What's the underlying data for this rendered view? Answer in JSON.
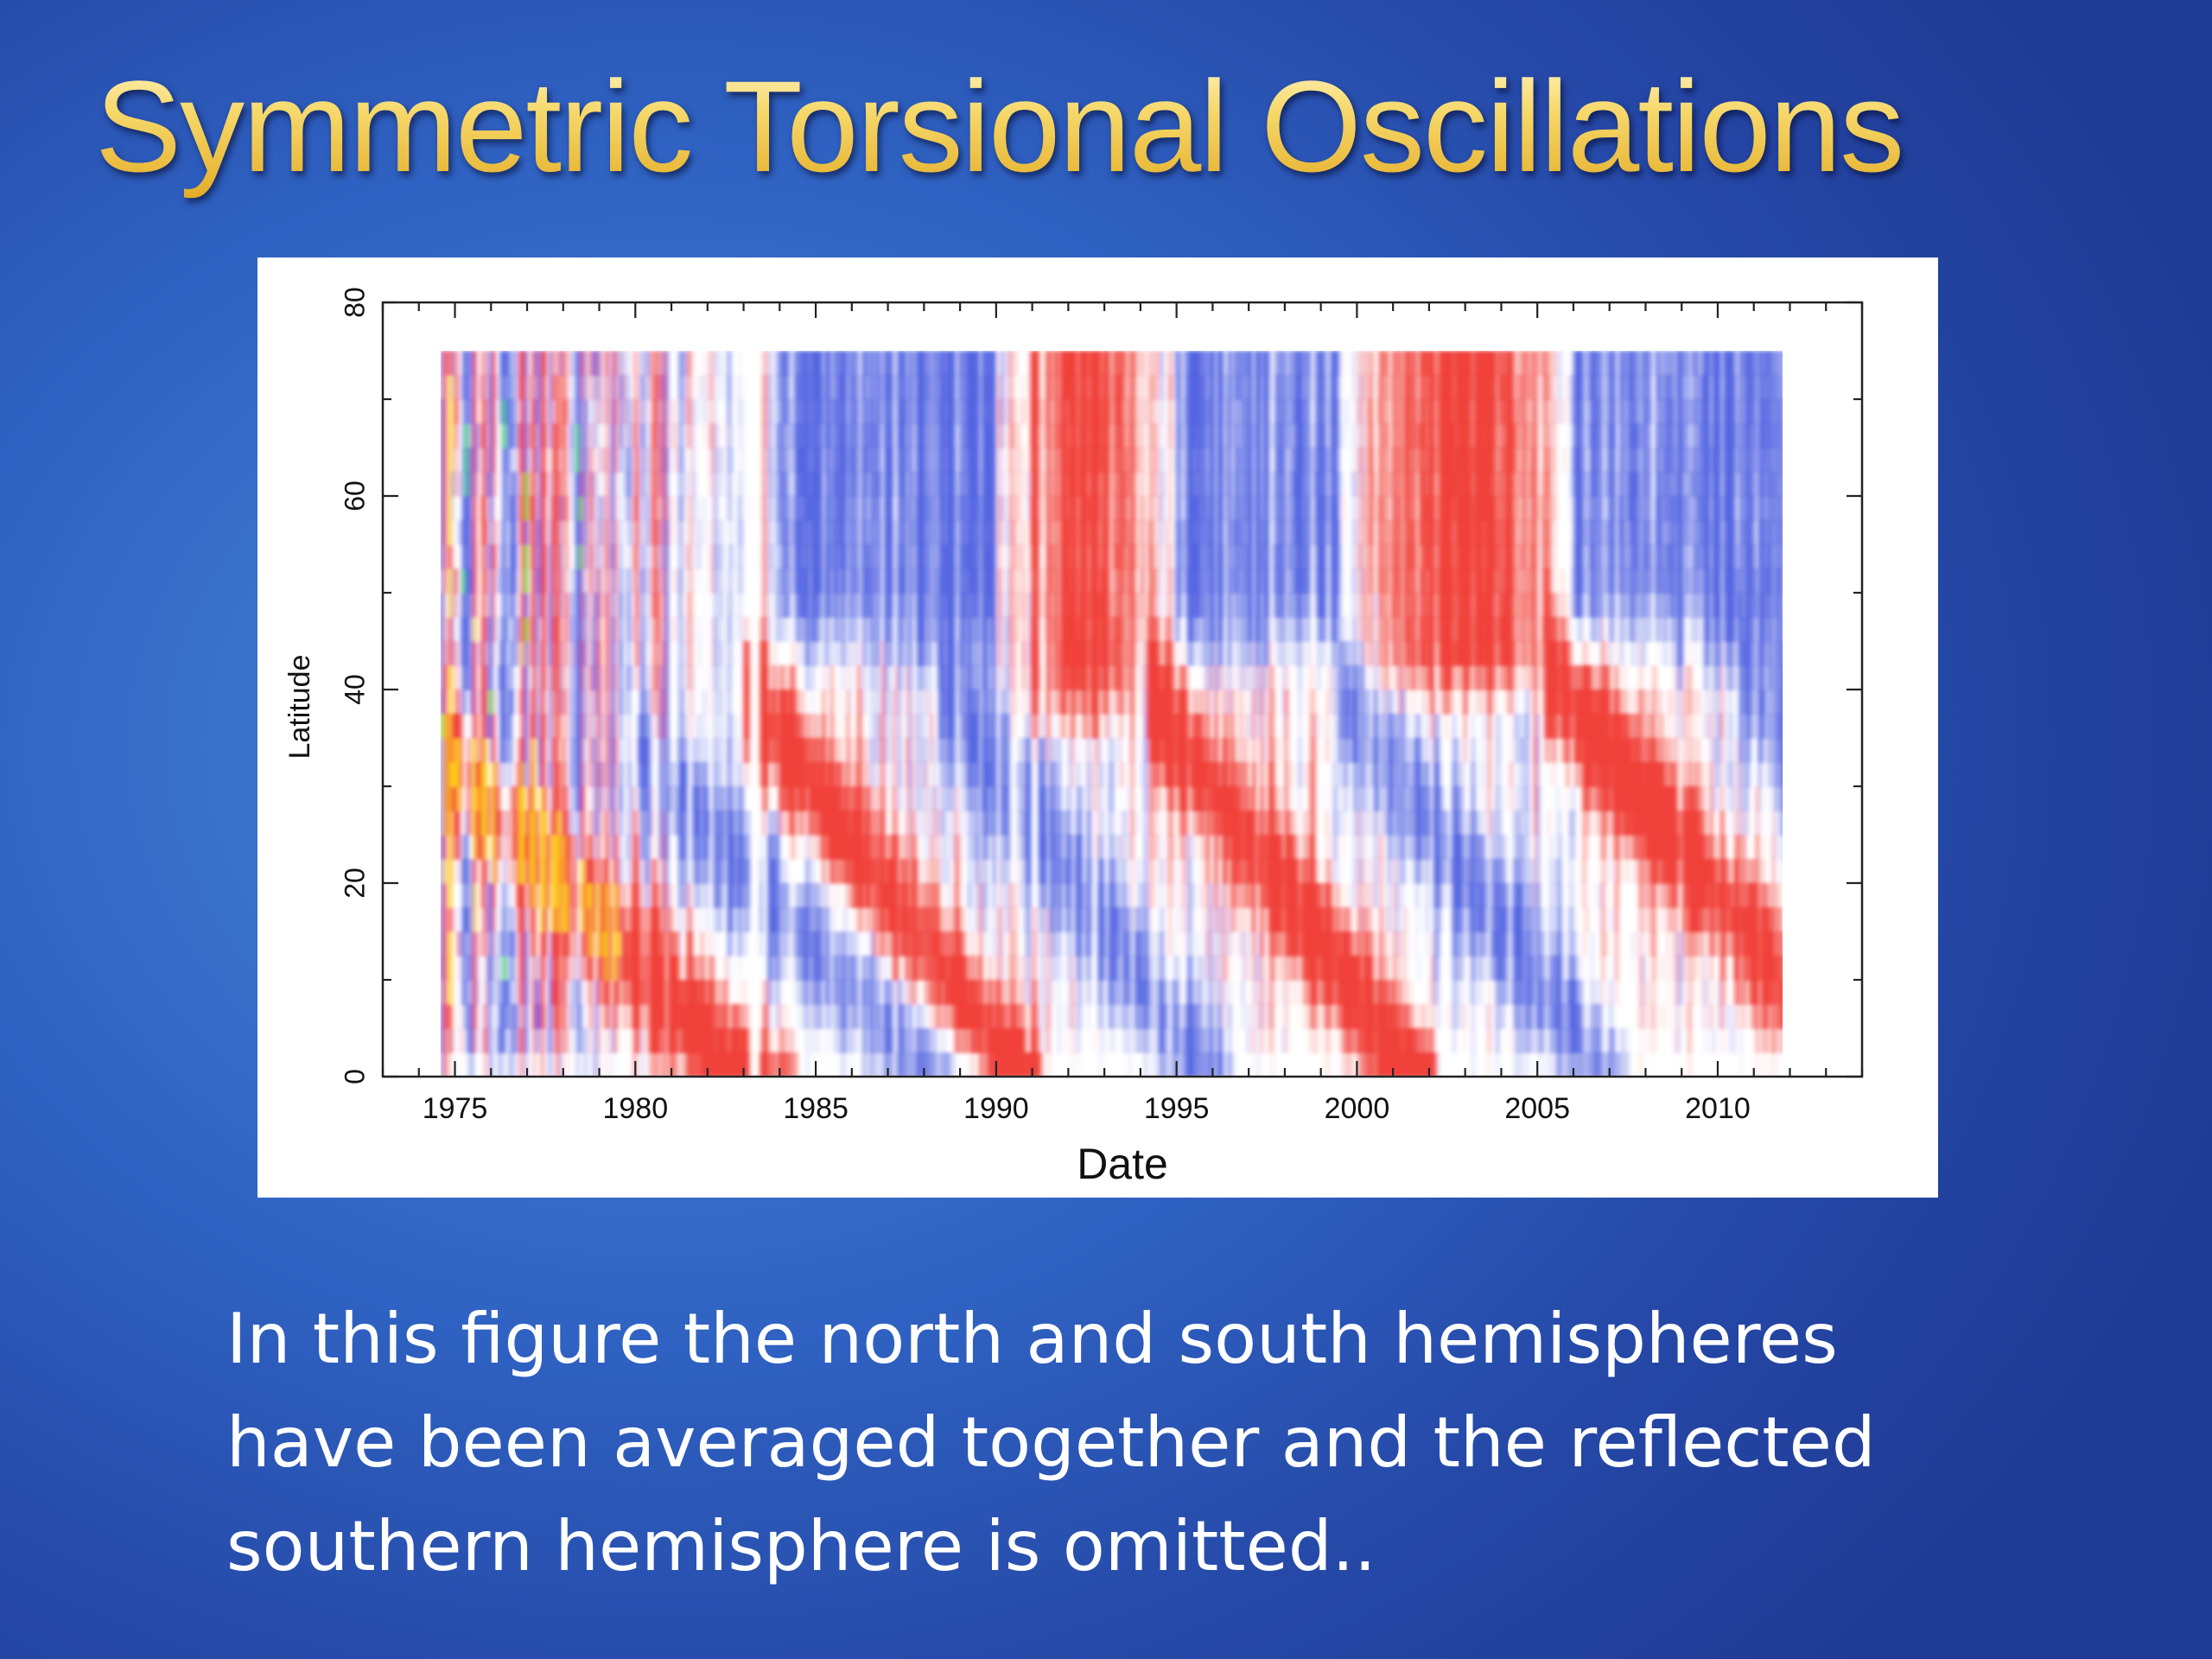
{
  "slide": {
    "title": "Symmetric Torsional Oscillations",
    "caption_lines": [
      "In this figure the north and south hemispheres",
      "have been averaged together and the reflected",
      "southern hemisphere is omitted.."
    ]
  },
  "colors": {
    "title_gold": "#f4cf58",
    "background_blue": "#2f62c2",
    "fast_red": "#f03a32",
    "slow_blue": "#4e5fe0",
    "extreme_yellow": "#ffc812",
    "extreme_green": "#3cd24a"
  },
  "chart_data": {
    "type": "heatmap",
    "xlabel": "Date",
    "ylabel": "Latitude",
    "xlim": [
      1973,
      2014
    ],
    "ylim": [
      0,
      80
    ],
    "x_ticks": [
      1975,
      1980,
      1985,
      1990,
      1995,
      2000,
      2005,
      2010
    ],
    "y_ticks": [
      0,
      20,
      40,
      60,
      80
    ],
    "data_extent": {
      "x": [
        1974.6,
        2011.8
      ],
      "y": [
        0,
        75
      ]
    },
    "data_gap": [
      1983.1,
      1983.4
    ],
    "features": {
      "equatorward_fast_bands": [
        {
          "start": [
            1975.5,
            30
          ],
          "end": [
            1983,
            0
          ]
        },
        {
          "start": [
            1983.8,
            36
          ],
          "end": [
            1990,
            3
          ]
        },
        {
          "start": [
            1995,
            35
          ],
          "end": [
            2001,
            3
          ]
        },
        {
          "start": [
            2006,
            38
          ],
          "end": [
            2011.8,
            10
          ]
        }
      ],
      "poleward_fast_bands": [
        {
          "x_range": [
            1990.5,
            1994.5
          ],
          "lat_range": [
            38,
            75
          ]
        },
        {
          "x_range": [
            2000,
            2006
          ],
          "lat_range": [
            40,
            72
          ]
        }
      ],
      "early_noisy_period": [
        1974.6,
        1982.5
      ]
    }
  }
}
